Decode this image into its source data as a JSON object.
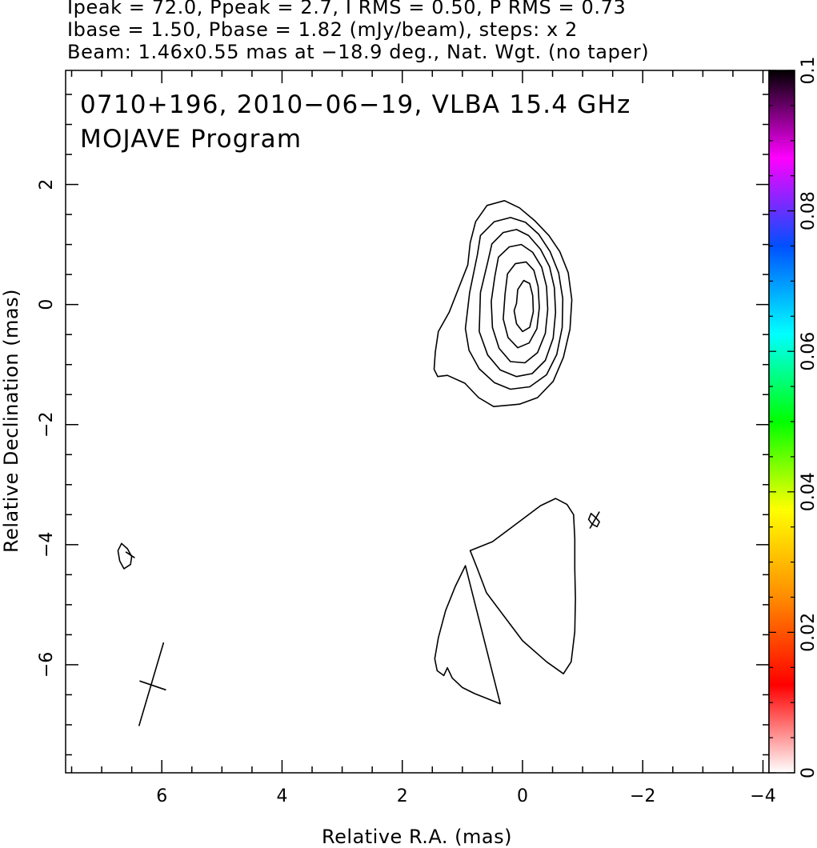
{
  "header": {
    "line1": "Ipeak = 72.0, Ppeak = 2.7, I RMS = 0.50, P RMS = 0.73",
    "line2": "Ibase = 1.50, Pbase = 1.82 (mJy/beam), steps: x 2",
    "line3": "Beam: 1.46x0.55 mas at −18.9 deg., Nat. Wgt. (no taper)"
  },
  "chart_data": {
    "type": "contour",
    "title_line1": "0710+196, 2010−06−19, VLBA 15.4 GHz",
    "title_line2": "MOJAVE Program",
    "xlabel": "Relative R.A. (mas)",
    "ylabel": "Relative Declination (mas)",
    "xlim": [
      7.6,
      -4.1
    ],
    "ylim": [
      -7.8,
      3.9
    ],
    "xticks": [
      {
        "v": 6,
        "label": "6"
      },
      {
        "v": 4,
        "label": "4"
      },
      {
        "v": 2,
        "label": "2"
      },
      {
        "v": 0,
        "label": "0"
      },
      {
        "v": -2,
        "label": "−2"
      },
      {
        "v": -4,
        "label": "−4"
      }
    ],
    "yticks": [
      {
        "v": 2,
        "label": "2"
      },
      {
        "v": 0,
        "label": "0"
      },
      {
        "v": -2,
        "label": "−2"
      },
      {
        "v": -4,
        "label": "−4"
      },
      {
        "v": -6,
        "label": "−6"
      }
    ],
    "colorbar": {
      "range": [
        0,
        0.1
      ],
      "ticks": [
        {
          "v": 0,
          "label": "0"
        },
        {
          "v": 0.02,
          "label": "0.02"
        },
        {
          "v": 0.04,
          "label": "0.04"
        },
        {
          "v": 0.06,
          "label": "0.06"
        },
        {
          "v": 0.08,
          "label": "0.08"
        },
        {
          "v": 0.1,
          "label": "0.1"
        }
      ],
      "colormap": [
        "#ffffff",
        "#ff0000",
        "#ff8c00",
        "#ffff00",
        "#00ff00",
        "#00ffff",
        "#0050ff",
        "#ff00ff",
        "#000000"
      ]
    },
    "components": [
      {
        "name": "core",
        "contours": [
          [
            [
              0.87,
              1.03
            ],
            [
              0.78,
              1.38
            ],
            [
              0.59,
              1.65
            ],
            [
              0.3,
              1.73
            ],
            [
              0.05,
              1.61
            ],
            [
              -0.2,
              1.4
            ],
            [
              -0.44,
              1.15
            ],
            [
              -0.62,
              0.88
            ],
            [
              -0.76,
              0.53
            ],
            [
              -0.82,
              0.08
            ],
            [
              -0.79,
              -0.41
            ],
            [
              -0.68,
              -0.88
            ],
            [
              -0.51,
              -1.28
            ],
            [
              -0.25,
              -1.55
            ],
            [
              0.05,
              -1.66
            ],
            [
              0.48,
              -1.7
            ],
            [
              0.73,
              -1.55
            ],
            [
              0.96,
              -1.31
            ],
            [
              1.25,
              -1.18
            ],
            [
              1.41,
              -1.2
            ],
            [
              1.47,
              -1.08
            ],
            [
              1.45,
              -0.79
            ],
            [
              1.4,
              -0.45
            ],
            [
              1.22,
              -0.13
            ],
            [
              0.91,
              0.66
            ]
          ],
          [
            [
              0.75,
              0.83
            ],
            [
              0.7,
              1.15
            ],
            [
              0.47,
              1.38
            ],
            [
              0.2,
              1.45
            ],
            [
              -0.05,
              1.37
            ],
            [
              -0.27,
              1.17
            ],
            [
              -0.46,
              0.88
            ],
            [
              -0.6,
              0.53
            ],
            [
              -0.67,
              0.1
            ],
            [
              -0.66,
              -0.38
            ],
            [
              -0.57,
              -0.83
            ],
            [
              -0.4,
              -1.17
            ],
            [
              -0.12,
              -1.37
            ],
            [
              0.2,
              -1.41
            ],
            [
              0.47,
              -1.3
            ],
            [
              0.72,
              -1.07
            ],
            [
              0.89,
              -0.76
            ],
            [
              0.95,
              -0.4
            ],
            [
              0.88,
              0.2
            ]
          ],
          [
            [
              0.58,
              0.7
            ],
            [
              0.51,
              1.01
            ],
            [
              0.32,
              1.2
            ],
            [
              0.1,
              1.25
            ],
            [
              -0.1,
              1.15
            ],
            [
              -0.3,
              0.92
            ],
            [
              -0.45,
              0.63
            ],
            [
              -0.53,
              0.28
            ],
            [
              -0.55,
              -0.13
            ],
            [
              -0.51,
              -0.56
            ],
            [
              -0.38,
              -0.93
            ],
            [
              -0.16,
              -1.15
            ],
            [
              0.1,
              -1.2
            ],
            [
              0.37,
              -1.09
            ],
            [
              0.58,
              -0.84
            ],
            [
              0.72,
              -0.45
            ],
            [
              0.7,
              0.2
            ]
          ],
          [
            [
              0.46,
              0.47
            ],
            [
              0.4,
              0.79
            ],
            [
              0.22,
              0.96
            ],
            [
              0.02,
              1.0
            ],
            [
              -0.17,
              0.87
            ],
            [
              -0.32,
              0.62
            ],
            [
              -0.4,
              0.3
            ],
            [
              -0.42,
              -0.08
            ],
            [
              -0.38,
              -0.48
            ],
            [
              -0.25,
              -0.8
            ],
            [
              -0.04,
              -0.97
            ],
            [
              0.2,
              -0.95
            ],
            [
              0.39,
              -0.73
            ],
            [
              0.5,
              -0.38
            ],
            [
              0.52,
              0.05
            ]
          ],
          [
            [
              0.29,
              0.18
            ],
            [
              0.25,
              0.51
            ],
            [
              0.12,
              0.68
            ],
            [
              -0.06,
              0.71
            ],
            [
              -0.19,
              0.57
            ],
            [
              -0.26,
              0.3
            ],
            [
              -0.28,
              -0.05
            ],
            [
              -0.24,
              -0.4
            ],
            [
              -0.11,
              -0.64
            ],
            [
              0.08,
              -0.72
            ],
            [
              0.24,
              -0.55
            ],
            [
              0.32,
              -0.24
            ]
          ],
          [
            [
              0.1,
              0.02
            ],
            [
              0.08,
              0.25
            ],
            [
              -0.02,
              0.4
            ],
            [
              -0.12,
              0.35
            ],
            [
              -0.17,
              0.15
            ],
            [
              -0.18,
              -0.12
            ],
            [
              -0.12,
              -0.38
            ],
            [
              0.0,
              -0.45
            ],
            [
              0.1,
              -0.32
            ],
            [
              0.14,
              -0.1
            ]
          ]
        ]
      },
      {
        "name": "jet",
        "contours": [
          [
            [
              0.87,
              -4.1
            ],
            [
              0.75,
              -4.4
            ],
            [
              0.6,
              -4.8
            ],
            [
              0.3,
              -5.2
            ],
            [
              0.0,
              -5.6
            ],
            [
              -0.4,
              -5.95
            ],
            [
              -0.68,
              -6.15
            ],
            [
              -0.81,
              -5.95
            ],
            [
              -0.87,
              -5.45
            ],
            [
              -0.88,
              -4.9
            ],
            [
              -0.87,
              -4.4
            ],
            [
              -0.87,
              -3.9
            ],
            [
              -0.85,
              -3.5
            ],
            [
              -0.74,
              -3.33
            ],
            [
              -0.55,
              -3.23
            ],
            [
              -0.3,
              -3.35
            ],
            [
              0.1,
              -3.65
            ],
            [
              0.5,
              -3.95
            ]
          ],
          [
            [
              0.37,
              -6.65
            ],
            [
              0.8,
              -6.48
            ],
            [
              1.0,
              -6.38
            ],
            [
              1.17,
              -6.22
            ],
            [
              1.25,
              -6.05
            ],
            [
              1.31,
              -6.18
            ],
            [
              1.42,
              -6.1
            ],
            [
              1.46,
              -5.9
            ],
            [
              1.4,
              -5.55
            ],
            [
              1.28,
              -5.1
            ],
            [
              1.12,
              -4.7
            ],
            [
              0.95,
              -4.35
            ]
          ]
        ]
      },
      {
        "name": "noise-east",
        "contours": [
          [
            [
              6.67,
              -3.98
            ],
            [
              6.57,
              -4.07
            ],
            [
              6.5,
              -4.2
            ],
            [
              6.52,
              -4.33
            ],
            [
              6.63,
              -4.4
            ],
            [
              6.7,
              -4.27
            ],
            [
              6.73,
              -4.1
            ]
          ]
        ]
      },
      {
        "name": "noise-west",
        "contours": [
          [
            [
              -1.14,
              -3.48
            ],
            [
              -1.22,
              -3.55
            ],
            [
              -1.28,
              -3.62
            ],
            [
              -1.24,
              -3.7
            ],
            [
              -1.16,
              -3.66
            ],
            [
              -1.1,
              -3.58
            ]
          ]
        ]
      }
    ],
    "pol_ticks": [
      {
        "name": "noise-east",
        "from": [
          6.6,
          -4.12
        ],
        "to": [
          6.45,
          -4.22
        ]
      },
      {
        "name": "noise-west",
        "from": [
          -1.12,
          -3.73
        ],
        "to": [
          -1.28,
          -3.45
        ]
      }
    ],
    "beam_cross": {
      "major": {
        "from": [
          5.97,
          -5.63
        ],
        "to": [
          6.38,
          -7.02
        ]
      },
      "minor": {
        "from": [
          6.37,
          -6.27
        ],
        "to": [
          5.93,
          -6.42
        ]
      }
    }
  }
}
